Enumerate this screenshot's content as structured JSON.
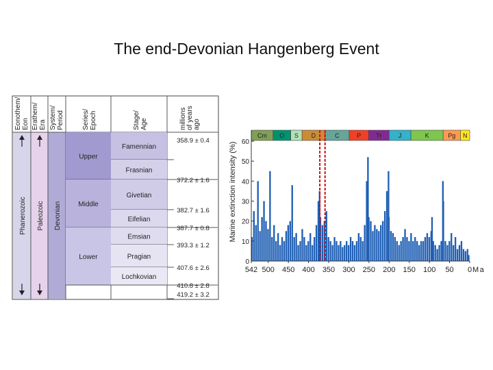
{
  "slide": {
    "title": "The end-Devonian Hangenberg Event"
  },
  "strat_table": {
    "headers": {
      "eon": [
        "Eonothem/",
        "Eon"
      ],
      "era": [
        "Erathem/",
        "Era"
      ],
      "system": [
        "System/",
        "Period"
      ],
      "series": [
        "Series/",
        "Epoch"
      ],
      "stage": [
        "Stage/",
        "Age"
      ],
      "age": [
        "millions",
        "of years",
        "ago"
      ]
    },
    "eon": "Phanerozoic",
    "era": "Paleozoic",
    "period": "Devonian",
    "series": [
      {
        "name": "Upper",
        "color": "#a09ad0"
      },
      {
        "name": "Middle",
        "color": "#b8b2dc"
      },
      {
        "name": "Lower",
        "color": "#c9c5e6"
      }
    ],
    "stages": [
      {
        "name": "Famennian",
        "color": "#c6c1e3"
      },
      {
        "name": "Frasnian",
        "color": "#d4d0ea"
      },
      {
        "name": "Givetian",
        "color": "#d0cce8"
      },
      {
        "name": "Eifelian",
        "color": "#dcd8ee"
      },
      {
        "name": "Emsian",
        "color": "#e0dcf0"
      },
      {
        "name": "Pragian",
        "color": "#e6e3f3"
      },
      {
        "name": "Lochkovian",
        "color": "#ebe8f5"
      }
    ],
    "boundary_ages": [
      "358.9 ± 0.4",
      "372.2 ± 1.6",
      "382.7 ± 1.6",
      "387.7 ± 0.8",
      "393.3 ± 1.2",
      "407.6 ± 2.6",
      "410.8 ± 2.8",
      "419.2 ± 3.2"
    ]
  },
  "chart_data": {
    "type": "bar",
    "title": "",
    "xlabel": "Ma",
    "ylabel": "Marine extinction intensity (%)",
    "xlim": [
      542,
      0
    ],
    "ylim": [
      0,
      60
    ],
    "xticks": [
      542,
      500,
      450,
      400,
      350,
      300,
      250,
      200,
      150,
      100,
      50,
      0
    ],
    "yticks": [
      0,
      10,
      20,
      30,
      40,
      50,
      60
    ],
    "grid": false,
    "bar_color": "#1f5fb4",
    "periods": [
      {
        "label": "Cm",
        "start": 542,
        "end": 488,
        "color": "#7fa056"
      },
      {
        "label": "O",
        "start": 488,
        "end": 444,
        "color": "#009270"
      },
      {
        "label": "S",
        "start": 444,
        "end": 416,
        "color": "#b3e1b6"
      },
      {
        "label": "D",
        "start": 416,
        "end": 359,
        "color": "#cb8c37"
      },
      {
        "label": "C",
        "start": 359,
        "end": 299,
        "color": "#67a599"
      },
      {
        "label": "P",
        "start": 299,
        "end": 251,
        "color": "#f04028"
      },
      {
        "label": "Tr",
        "start": 251,
        "end": 200,
        "color": "#812b92"
      },
      {
        "label": "J",
        "start": 200,
        "end": 146,
        "color": "#34b2c9"
      },
      {
        "label": "K",
        "start": 146,
        "end": 66,
        "color": "#7fc64e"
      },
      {
        "label": "Pg",
        "start": 66,
        "end": 23,
        "color": "#fd9a52"
      },
      {
        "label": "N",
        "start": 23,
        "end": 0,
        "color": "#ffe619"
      }
    ],
    "event_lines": [
      372,
      359
    ],
    "event_line_color": "#cc1111",
    "x": [
      540,
      535,
      530,
      525,
      520,
      515,
      510,
      505,
      500,
      495,
      490,
      485,
      480,
      475,
      470,
      465,
      460,
      455,
      450,
      445,
      440,
      435,
      430,
      425,
      420,
      415,
      410,
      405,
      400,
      395,
      390,
      385,
      380,
      375,
      372,
      370,
      365,
      360,
      355,
      350,
      345,
      340,
      335,
      330,
      325,
      320,
      315,
      310,
      305,
      300,
      295,
      290,
      285,
      280,
      275,
      270,
      265,
      260,
      255,
      252,
      250,
      245,
      240,
      235,
      230,
      225,
      220,
      215,
      210,
      205,
      201,
      200,
      195,
      190,
      185,
      180,
      175,
      170,
      165,
      160,
      155,
      150,
      145,
      140,
      135,
      130,
      125,
      120,
      115,
      110,
      105,
      100,
      95,
      93,
      90,
      85,
      80,
      75,
      70,
      66,
      65,
      60,
      55,
      50,
      45,
      40,
      35,
      30,
      25,
      20,
      15,
      10,
      5,
      2
    ],
    "values": [
      12,
      25,
      18,
      40,
      15,
      22,
      30,
      20,
      16,
      45,
      12,
      18,
      10,
      14,
      8,
      12,
      10,
      15,
      18,
      20,
      38,
      12,
      14,
      8,
      10,
      16,
      12,
      8,
      10,
      14,
      8,
      12,
      18,
      30,
      35,
      22,
      18,
      20,
      25,
      12,
      10,
      8,
      12,
      10,
      8,
      10,
      7,
      8,
      10,
      8,
      12,
      10,
      8,
      10,
      14,
      12,
      10,
      18,
      40,
      52,
      22,
      20,
      15,
      18,
      16,
      15,
      18,
      20,
      25,
      35,
      45,
      22,
      15,
      14,
      12,
      10,
      8,
      10,
      12,
      16,
      12,
      10,
      14,
      10,
      12,
      10,
      8,
      10,
      10,
      12,
      14,
      12,
      15,
      22,
      10,
      8,
      6,
      8,
      10,
      40,
      30,
      10,
      8,
      10,
      14,
      8,
      12,
      6,
      8,
      10,
      6,
      5,
      6,
      3
    ]
  }
}
